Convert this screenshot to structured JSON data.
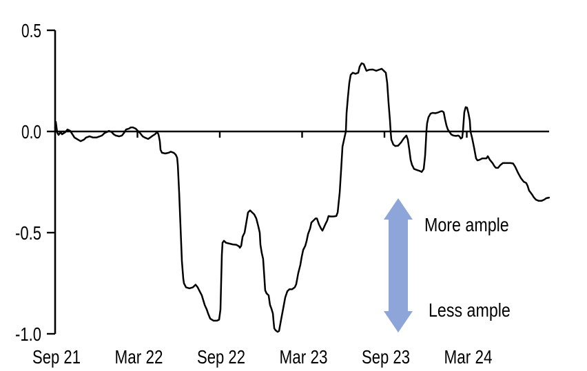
{
  "chart_data": {
    "type": "line",
    "title": "",
    "x_axis": {
      "unit": "months since Sep 2021",
      "tick_labels": [
        "Sep 21",
        "Mar 22",
        "Sep 22",
        "Mar 23",
        "Sep 23",
        "Mar 24"
      ],
      "tick_positions_months": [
        0,
        6,
        12,
        18,
        24,
        30
      ],
      "range_months": [
        0,
        36
      ]
    },
    "y_axis": {
      "tick_labels": [
        "0.5",
        "0.0",
        "-0.5",
        "-1.0"
      ],
      "tick_values": [
        0.5,
        0.0,
        -0.5,
        -1.0
      ],
      "range": [
        -1.0,
        0.5
      ]
    },
    "grid": false,
    "zero_line": true,
    "legend": "none",
    "series": [
      {
        "name": "indicator",
        "color": "#000000",
        "points": [
          [
            0,
            0.017
          ],
          [
            0.05,
            0.048
          ],
          [
            0.15,
            -0.005
          ],
          [
            0.25,
            -0.017
          ],
          [
            0.4,
            -0.003
          ],
          [
            0.5,
            -0.014
          ],
          [
            0.75,
            -0.003
          ],
          [
            0.9,
            0.01
          ],
          [
            1.1,
            0.003
          ],
          [
            1.26,
            -0.014
          ],
          [
            1.41,
            -0.03
          ],
          [
            1.66,
            -0.04
          ],
          [
            1.86,
            -0.048
          ],
          [
            2.11,
            -0.04
          ],
          [
            2.26,
            -0.03
          ],
          [
            2.51,
            -0.024
          ],
          [
            2.76,
            -0.03
          ],
          [
            3.01,
            -0.03
          ],
          [
            3.26,
            -0.024
          ],
          [
            3.41,
            -0.02
          ],
          [
            3.62,
            -0.007
          ],
          [
            3.77,
            -0.003
          ],
          [
            3.92,
            0.003
          ],
          [
            4.12,
            -0.003
          ],
          [
            4.27,
            -0.014
          ],
          [
            4.42,
            -0.02
          ],
          [
            4.67,
            -0.024
          ],
          [
            4.87,
            -0.02
          ],
          [
            5.02,
            -0.007
          ],
          [
            5.17,
            0.01
          ],
          [
            5.37,
            0.014
          ],
          [
            5.52,
            0.02
          ],
          [
            5.67,
            0.02
          ],
          [
            5.87,
            0.014
          ],
          [
            6.03,
            0.003
          ],
          [
            6.18,
            -0.007
          ],
          [
            6.38,
            -0.024
          ],
          [
            6.53,
            -0.03
          ],
          [
            6.78,
            -0.037
          ],
          [
            6.93,
            -0.03
          ],
          [
            7.13,
            -0.02
          ],
          [
            7.28,
            -0.014
          ],
          [
            7.43,
            -0.003
          ],
          [
            7.53,
            -0.014
          ],
          [
            7.63,
            -0.048
          ],
          [
            7.68,
            -0.09
          ],
          [
            7.78,
            -0.105
          ],
          [
            8.03,
            -0.109
          ],
          [
            8.28,
            -0.105
          ],
          [
            8.43,
            -0.1
          ],
          [
            8.64,
            -0.105
          ],
          [
            8.79,
            -0.115
          ],
          [
            8.89,
            -0.13
          ],
          [
            8.94,
            -0.167
          ],
          [
            9.04,
            -0.3
          ],
          [
            9.14,
            -0.47
          ],
          [
            9.24,
            -0.64
          ],
          [
            9.34,
            -0.727
          ],
          [
            9.39,
            -0.75
          ],
          [
            9.54,
            -0.77
          ],
          [
            9.79,
            -0.775
          ],
          [
            10.04,
            -0.77
          ],
          [
            10.24,
            -0.757
          ],
          [
            10.39,
            -0.77
          ],
          [
            10.54,
            -0.79
          ],
          [
            10.69,
            -0.81
          ],
          [
            10.9,
            -0.857
          ],
          [
            11.05,
            -0.88
          ],
          [
            11.15,
            -0.9
          ],
          [
            11.3,
            -0.925
          ],
          [
            11.55,
            -0.935
          ],
          [
            11.8,
            -0.935
          ],
          [
            11.95,
            -0.93
          ],
          [
            12.05,
            -0.88
          ],
          [
            12.1,
            -0.745
          ],
          [
            12.15,
            -0.61
          ],
          [
            12.2,
            -0.55
          ],
          [
            12.3,
            -0.54
          ],
          [
            12.45,
            -0.55
          ],
          [
            12.7,
            -0.554
          ],
          [
            12.95,
            -0.558
          ],
          [
            13.2,
            -0.56
          ],
          [
            13.41,
            -0.568
          ],
          [
            13.46,
            -0.575
          ],
          [
            13.56,
            -0.565
          ],
          [
            13.66,
            -0.52
          ],
          [
            13.81,
            -0.5
          ],
          [
            13.96,
            -0.44
          ],
          [
            14.06,
            -0.4
          ],
          [
            14.21,
            -0.39
          ],
          [
            14.36,
            -0.4
          ],
          [
            14.51,
            -0.41
          ],
          [
            14.66,
            -0.43
          ],
          [
            14.81,
            -0.47
          ],
          [
            14.91,
            -0.5
          ],
          [
            14.96,
            -0.56
          ],
          [
            15.06,
            -0.6
          ],
          [
            15.16,
            -0.63
          ],
          [
            15.21,
            -0.68
          ],
          [
            15.31,
            -0.785
          ],
          [
            15.41,
            -0.8
          ],
          [
            15.56,
            -0.81
          ],
          [
            15.66,
            -0.857
          ],
          [
            15.77,
            -0.877
          ],
          [
            15.87,
            -0.9
          ],
          [
            15.92,
            -0.94
          ],
          [
            15.97,
            -0.973
          ],
          [
            16.07,
            -0.983
          ],
          [
            16.22,
            -0.99
          ],
          [
            16.32,
            -0.986
          ],
          [
            16.47,
            -0.93
          ],
          [
            16.67,
            -0.857
          ],
          [
            16.77,
            -0.82
          ],
          [
            16.92,
            -0.79
          ],
          [
            17.07,
            -0.78
          ],
          [
            17.27,
            -0.78
          ],
          [
            17.47,
            -0.77
          ],
          [
            17.57,
            -0.755
          ],
          [
            17.72,
            -0.7
          ],
          [
            17.87,
            -0.66
          ],
          [
            17.97,
            -0.62
          ],
          [
            18.08,
            -0.585
          ],
          [
            18.23,
            -0.565
          ],
          [
            18.33,
            -0.54
          ],
          [
            18.43,
            -0.507
          ],
          [
            18.58,
            -0.48
          ],
          [
            18.68,
            -0.45
          ],
          [
            18.83,
            -0.44
          ],
          [
            18.98,
            -0.43
          ],
          [
            19.08,
            -0.43
          ],
          [
            19.23,
            -0.46
          ],
          [
            19.38,
            -0.48
          ],
          [
            19.48,
            -0.49
          ],
          [
            19.58,
            -0.476
          ],
          [
            19.68,
            -0.46
          ],
          [
            19.83,
            -0.44
          ],
          [
            19.93,
            -0.418
          ],
          [
            20.08,
            -0.42
          ],
          [
            20.28,
            -0.42
          ],
          [
            20.49,
            -0.418
          ],
          [
            20.59,
            -0.4
          ],
          [
            20.74,
            -0.3
          ],
          [
            20.84,
            -0.19
          ],
          [
            20.94,
            -0.075
          ],
          [
            21.09,
            -0.03
          ],
          [
            21.19,
            0.0
          ],
          [
            21.24,
            0.09
          ],
          [
            21.34,
            0.17
          ],
          [
            21.44,
            0.24
          ],
          [
            21.54,
            0.28
          ],
          [
            21.69,
            0.29
          ],
          [
            21.89,
            0.285
          ],
          [
            22.09,
            0.29
          ],
          [
            22.19,
            0.32
          ],
          [
            22.34,
            0.337
          ],
          [
            22.49,
            0.333
          ],
          [
            22.59,
            0.316
          ],
          [
            22.69,
            0.3
          ],
          [
            22.9,
            0.305
          ],
          [
            23.15,
            0.306
          ],
          [
            23.4,
            0.3
          ],
          [
            23.65,
            0.306
          ],
          [
            23.8,
            0.31
          ],
          [
            23.95,
            0.3
          ],
          [
            24.1,
            0.29
          ],
          [
            24.2,
            0.24
          ],
          [
            24.3,
            0.14
          ],
          [
            24.4,
            0.055
          ],
          [
            24.45,
            0.0
          ],
          [
            24.5,
            -0.04
          ],
          [
            24.65,
            -0.065
          ],
          [
            24.8,
            -0.072
          ],
          [
            25.0,
            -0.07
          ],
          [
            25.2,
            -0.055
          ],
          [
            25.4,
            -0.035
          ],
          [
            25.6,
            -0.02
          ],
          [
            25.7,
            -0.04
          ],
          [
            25.81,
            -0.09
          ],
          [
            25.91,
            -0.14
          ],
          [
            26.01,
            -0.165
          ],
          [
            26.16,
            -0.185
          ],
          [
            26.36,
            -0.19
          ],
          [
            26.56,
            -0.195
          ],
          [
            26.71,
            -0.2
          ],
          [
            26.86,
            -0.185
          ],
          [
            26.96,
            -0.12
          ],
          [
            27.01,
            -0.06
          ],
          [
            27.06,
            0.0
          ],
          [
            27.11,
            0.04
          ],
          [
            27.21,
            0.07
          ],
          [
            27.36,
            0.088
          ],
          [
            27.51,
            0.092
          ],
          [
            27.71,
            0.09
          ],
          [
            27.91,
            0.094
          ],
          [
            28.12,
            0.1
          ],
          [
            28.22,
            0.1
          ],
          [
            28.32,
            0.095
          ],
          [
            28.42,
            0.06
          ],
          [
            28.52,
            0.03
          ],
          [
            28.62,
            0.01
          ],
          [
            28.72,
            0.0
          ],
          [
            28.87,
            -0.015
          ],
          [
            29.02,
            -0.02
          ],
          [
            29.22,
            -0.022
          ],
          [
            29.37,
            -0.02
          ],
          [
            29.47,
            -0.024
          ],
          [
            29.57,
            -0.035
          ],
          [
            29.67,
            -0.03
          ],
          [
            29.72,
            0.0
          ],
          [
            29.82,
            0.095
          ],
          [
            29.92,
            0.12
          ],
          [
            30.02,
            0.118
          ],
          [
            30.12,
            0.09
          ],
          [
            30.22,
            0.054
          ],
          [
            30.27,
            0.0
          ],
          [
            30.38,
            -0.03
          ],
          [
            30.53,
            -0.08
          ],
          [
            30.63,
            -0.115
          ],
          [
            30.68,
            -0.133
          ],
          [
            30.78,
            -0.143
          ],
          [
            30.93,
            -0.14
          ],
          [
            31.13,
            -0.133
          ],
          [
            31.28,
            -0.133
          ],
          [
            31.43,
            -0.133
          ],
          [
            31.53,
            -0.122
          ],
          [
            31.68,
            -0.14
          ],
          [
            31.88,
            -0.156
          ],
          [
            32.03,
            -0.173
          ],
          [
            32.13,
            -0.18
          ],
          [
            32.28,
            -0.18
          ],
          [
            32.43,
            -0.167
          ],
          [
            32.63,
            -0.156
          ],
          [
            32.83,
            -0.156
          ],
          [
            33.03,
            -0.156
          ],
          [
            33.18,
            -0.156
          ],
          [
            33.38,
            -0.158
          ],
          [
            33.53,
            -0.175
          ],
          [
            33.74,
            -0.205
          ],
          [
            33.94,
            -0.23
          ],
          [
            34.14,
            -0.248
          ],
          [
            34.34,
            -0.255
          ],
          [
            34.44,
            -0.27
          ],
          [
            34.54,
            -0.292
          ],
          [
            34.74,
            -0.31
          ],
          [
            34.89,
            -0.326
          ],
          [
            35.04,
            -0.337
          ],
          [
            35.24,
            -0.343
          ],
          [
            35.44,
            -0.343
          ],
          [
            35.64,
            -0.337
          ],
          [
            35.79,
            -0.33
          ],
          [
            35.99,
            -0.327
          ]
        ]
      }
    ],
    "annotations": [
      {
        "text": "More ample",
        "color": "#000000"
      },
      {
        "text": "Less ample",
        "color": "#000000"
      }
    ],
    "arrow": {
      "type": "double-headed-vertical",
      "color": "#8DA5D9"
    }
  }
}
